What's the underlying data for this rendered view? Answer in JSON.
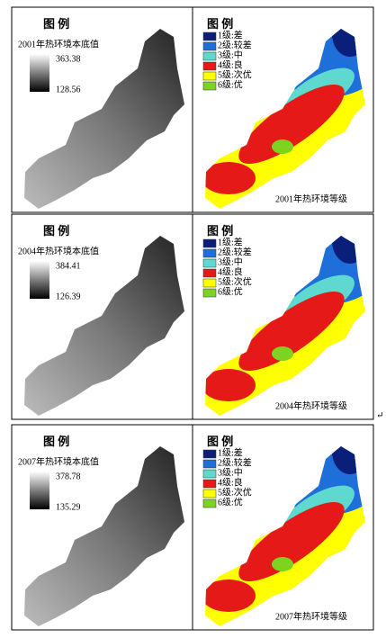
{
  "base_panels": [
    {
      "legend_title": "图 例",
      "subtitle": "2001年热环境本底值",
      "max": 363.38,
      "min": 128.56
    },
    {
      "legend_title": "图 例",
      "subtitle": "2004年热环境本底值",
      "max": 384.41,
      "min": 126.39
    },
    {
      "legend_title": "图 例",
      "subtitle": "2007年热环境本底值",
      "max": 378.78,
      "min": 135.29
    }
  ],
  "grade_panels": [
    {
      "legend_title": "图 例",
      "levels": [
        "1级:差",
        "2级:较差",
        "3级:中",
        "4级:良",
        "5级:次优",
        "6级:优"
      ],
      "caption": "2001年热环境等级"
    },
    {
      "legend_title": "图 例",
      "levels": [
        "1级:差",
        "2级:较差",
        "3级:中",
        "4级:良",
        "5级:次优",
        "6级:优"
      ],
      "caption": "2004年热环境等级"
    },
    {
      "legend_title": "图 例",
      "levels": [
        "1级:差",
        "2级:较差",
        "3级:中",
        "4级:良",
        "5级:次优",
        "6级:优"
      ],
      "caption": "2007年热环境等级"
    }
  ],
  "level_colors": [
    "#0a1f7a",
    "#1e6fd9",
    "#5fd9d0",
    "#e61919",
    "#ffff00",
    "#7ed321"
  ],
  "paragraph_mark": "↵"
}
